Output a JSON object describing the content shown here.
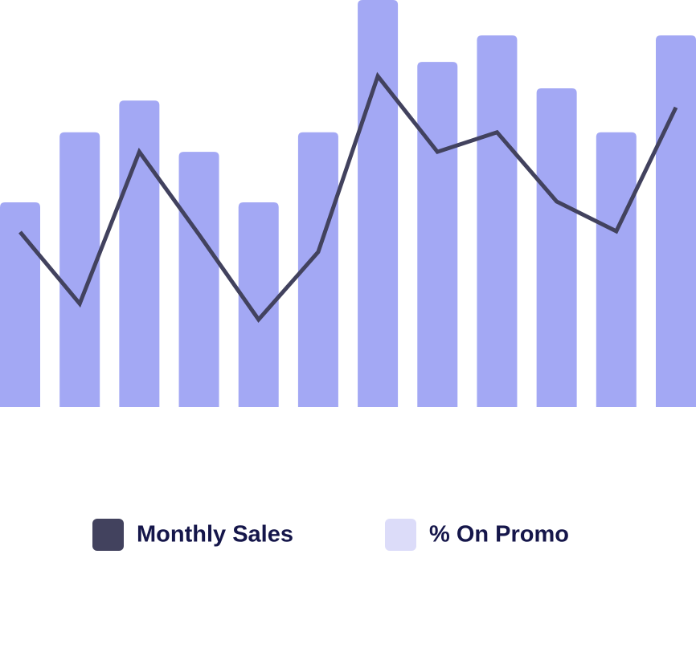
{
  "chart_data": {
    "type": "combo",
    "categories": [
      null,
      null,
      null,
      null,
      null,
      null,
      null,
      null,
      null,
      null,
      null,
      null
    ],
    "series": [
      {
        "name": "Monthly Sales",
        "type": "line",
        "color": "#42425e",
        "values": [
          43,
          25.4,
          62.7,
          42.4,
          21.5,
          38.1,
          81.3,
          62.7,
          67.5,
          50.5,
          43.2,
          73.6
        ]
      },
      {
        "name": "% On Promo",
        "type": "bar",
        "color": "#a3a8f4",
        "legend_color": "#dcdcf9",
        "values": [
          50.3,
          67.5,
          75.3,
          62.7,
          50.3,
          67.5,
          100,
          84.8,
          91.3,
          78.3,
          67.5,
          91.3
        ]
      }
    ],
    "ylim": [
      0,
      100
    ],
    "grid": false
  }
}
